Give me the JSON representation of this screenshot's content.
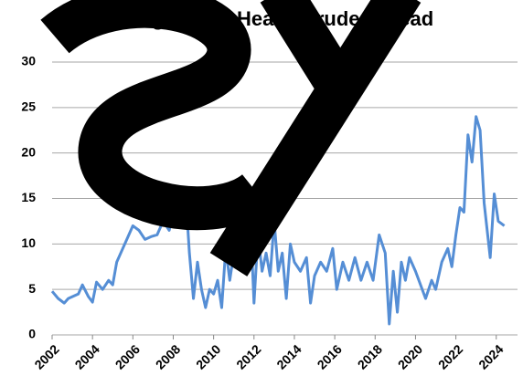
{
  "chart_data": {
    "type": "line",
    "title": "Average Light-Heavy Crude Spread",
    "x": [
      2002.0,
      2002.3,
      2002.6,
      2002.8,
      2003.0,
      2003.3,
      2003.5,
      2003.8,
      2004.0,
      2004.2,
      2004.5,
      2004.8,
      2005.0,
      2005.2,
      2005.5,
      2005.8,
      2006.0,
      2006.3,
      2006.6,
      2006.9,
      2007.2,
      2007.5,
      2007.8,
      2008.0,
      2008.2,
      2008.4,
      2008.6,
      2008.8,
      2009.0,
      2009.2,
      2009.4,
      2009.6,
      2009.8,
      2010.0,
      2010.2,
      2010.4,
      2010.6,
      2010.8,
      2011.0,
      2011.2,
      2011.5,
      2011.8,
      2012.0,
      2012.2,
      2012.4,
      2012.6,
      2012.8,
      2013.0,
      2013.2,
      2013.4,
      2013.6,
      2013.8,
      2014.0,
      2014.3,
      2014.6,
      2014.8,
      2015.0,
      2015.3,
      2015.6,
      2015.9,
      2016.1,
      2016.4,
      2016.7,
      2017.0,
      2017.3,
      2017.6,
      2017.9,
      2018.2,
      2018.5,
      2018.7,
      2018.9,
      2019.1,
      2019.3,
      2019.5,
      2019.7,
      2020.0,
      2020.5,
      2020.8,
      2021.0,
      2021.3,
      2021.6,
      2021.8,
      2022.0,
      2022.2,
      2022.4,
      2022.6,
      2022.8,
      2023.0,
      2023.2,
      2023.4,
      2023.7,
      2023.9,
      2024.1,
      2024.4
    ],
    "series": [
      {
        "color": "#558ed5",
        "values": [
          4.8,
          4.0,
          3.5,
          4.0,
          4.2,
          4.5,
          5.5,
          4.2,
          3.6,
          5.8,
          5.0,
          6.0,
          5.5,
          8.0,
          9.5,
          11.0,
          12.0,
          11.5,
          10.5,
          10.8,
          11.0,
          12.5,
          11.5,
          13.5,
          12.5,
          16.0,
          16.0,
          9.0,
          4.0,
          8.0,
          5.0,
          3.0,
          5.0,
          4.5,
          6.0,
          3.0,
          9.5,
          6.0,
          9.0,
          13.0,
          12.5,
          14.0,
          3.5,
          11.0,
          7.0,
          9.0,
          6.5,
          12.5,
          7.0,
          9.0,
          4.0,
          10.0,
          8.0,
          7.0,
          8.5,
          3.5,
          6.5,
          8.0,
          7.0,
          9.5,
          5.0,
          8.0,
          6.0,
          8.5,
          6.0,
          8.0,
          6.0,
          11.0,
          9.0,
          1.2,
          7.0,
          2.5,
          8.0,
          6.0,
          8.5,
          7.0,
          4.0,
          6.0,
          5.0,
          8.0,
          9.5,
          7.5,
          11.0,
          14.0,
          13.5,
          22.0,
          19.0,
          24.0,
          22.5,
          14.5,
          8.5,
          15.5,
          12.5,
          12.0
        ]
      }
    ],
    "xlim": [
      2002,
      2024.6
    ],
    "xticks": [
      2002,
      2004,
      2006,
      2008,
      2010,
      2012,
      2014,
      2016,
      2018,
      2020,
      2022,
      2024
    ],
    "ylim": [
      0,
      30
    ],
    "yticks": [
      0,
      5,
      10,
      15,
      20,
      25,
      30
    ],
    "grid": true
  }
}
